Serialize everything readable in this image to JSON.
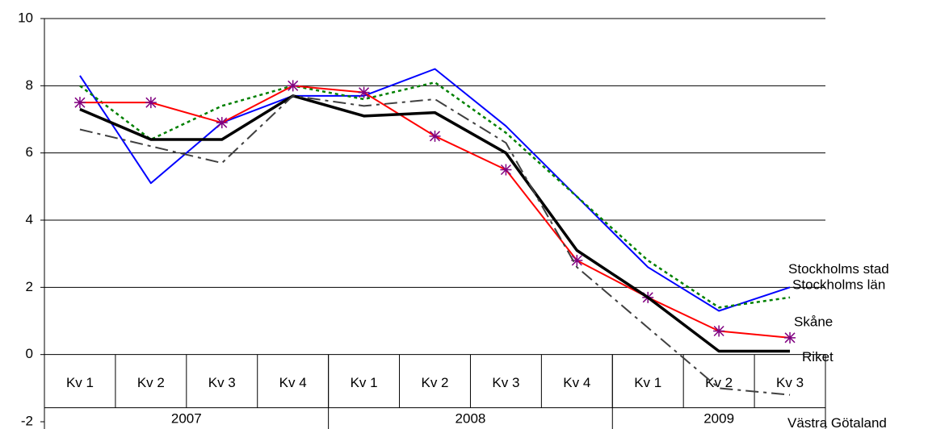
{
  "chart_data": {
    "type": "line",
    "categories": [
      "Kv 1",
      "Kv 2",
      "Kv 3",
      "Kv 4",
      "Kv 1",
      "Kv 2",
      "Kv 3",
      "Kv 4",
      "Kv 1",
      "Kv 2",
      "Kv 3"
    ],
    "groups": [
      {
        "label": "2007",
        "size": 4
      },
      {
        "label": "2008",
        "size": 4
      },
      {
        "label": "2009",
        "size": 3
      }
    ],
    "ylim": [
      -2,
      10
    ],
    "yticks": [
      -2,
      0,
      2,
      4,
      6,
      8,
      10
    ],
    "grid": true,
    "series": [
      {
        "name": "Stockholms stad",
        "color": "#0000ff",
        "style": "solid",
        "width": 2,
        "values": [
          8.3,
          5.1,
          6.9,
          7.7,
          7.7,
          8.5,
          6.8,
          4.7,
          2.6,
          1.3,
          2.0
        ]
      },
      {
        "name": "Stockholms län",
        "color": "#008000",
        "style": "dotted",
        "width": 2.5,
        "values": [
          8.0,
          6.4,
          7.4,
          8.0,
          7.6,
          8.1,
          6.6,
          4.7,
          2.8,
          1.4,
          1.7
        ]
      },
      {
        "name": "Skåne",
        "color": "#ff0000",
        "style": "solid",
        "width": 2,
        "marker": "asterisk",
        "marker_color": "#800080",
        "values": [
          7.5,
          7.5,
          6.9,
          8.0,
          7.8,
          6.5,
          5.5,
          2.8,
          1.7,
          0.7,
          0.5
        ]
      },
      {
        "name": "Riket",
        "color": "#000000",
        "style": "solid",
        "width": 3.5,
        "values": [
          7.3,
          6.4,
          6.4,
          7.7,
          7.1,
          7.2,
          6.0,
          3.1,
          1.7,
          0.1,
          0.1
        ]
      },
      {
        "name": "Västra Götaland",
        "color": "#404040",
        "style": "dashdot",
        "width": 2,
        "values": [
          6.7,
          6.2,
          5.7,
          7.7,
          7.4,
          7.6,
          6.3,
          2.6,
          0.8,
          -1.0,
          -1.2
        ]
      }
    ]
  }
}
